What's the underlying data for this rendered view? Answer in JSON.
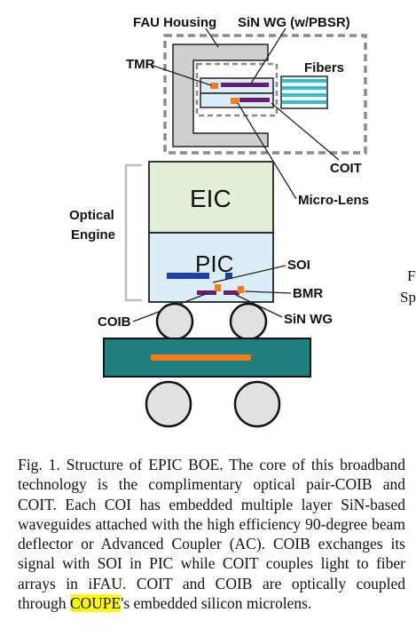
{
  "figure": {
    "labels": {
      "fau_housing": "FAU Housing",
      "sin_wg_pbsr": "SiN WG (w/PBSR)",
      "tmr": "TMR",
      "fibers": "Fibers",
      "coit": "COIT",
      "micro_lens": "Micro-Lens",
      "eic": "EIC",
      "optical": "Optical",
      "engine": "Engine",
      "pic": "PIC",
      "soi": "SOI",
      "bmr": "BMR",
      "coib": "COIB",
      "sin_wg": "SiN WG"
    },
    "side_text": {
      "line1": "F",
      "line2": "Sp"
    },
    "colors": {
      "eic_fill": "#e4efd9",
      "pic_fill": "#dbeef7",
      "housing_fill": "#cfcfcf",
      "waveguide": "#6a1b6f",
      "soi_bar": "#1f3fa8",
      "mirror": "#f07c1e",
      "pcb_fill": "#1f7f7f",
      "ball_fill": "#e1e1e1",
      "fiber_fill": "#2fc0c4"
    }
  },
  "caption": {
    "before": "Fig. 1. Structure of EPIC BOE. The core of this broadband technology is the complimentary optical pair-COIB and COIT. Each COI has embedded multiple layer SiN-based waveguides attached with the high efficiency 90-degree beam deflector or Advanced Coupler (AC). COIB exchanges its signal with SOI in PIC while COIT couples light to fiber arrays in iFAU. COIT and COIB are optically coupled through ",
    "highlight": "COUPE",
    "after": "'s embedded silicon microlens."
  }
}
